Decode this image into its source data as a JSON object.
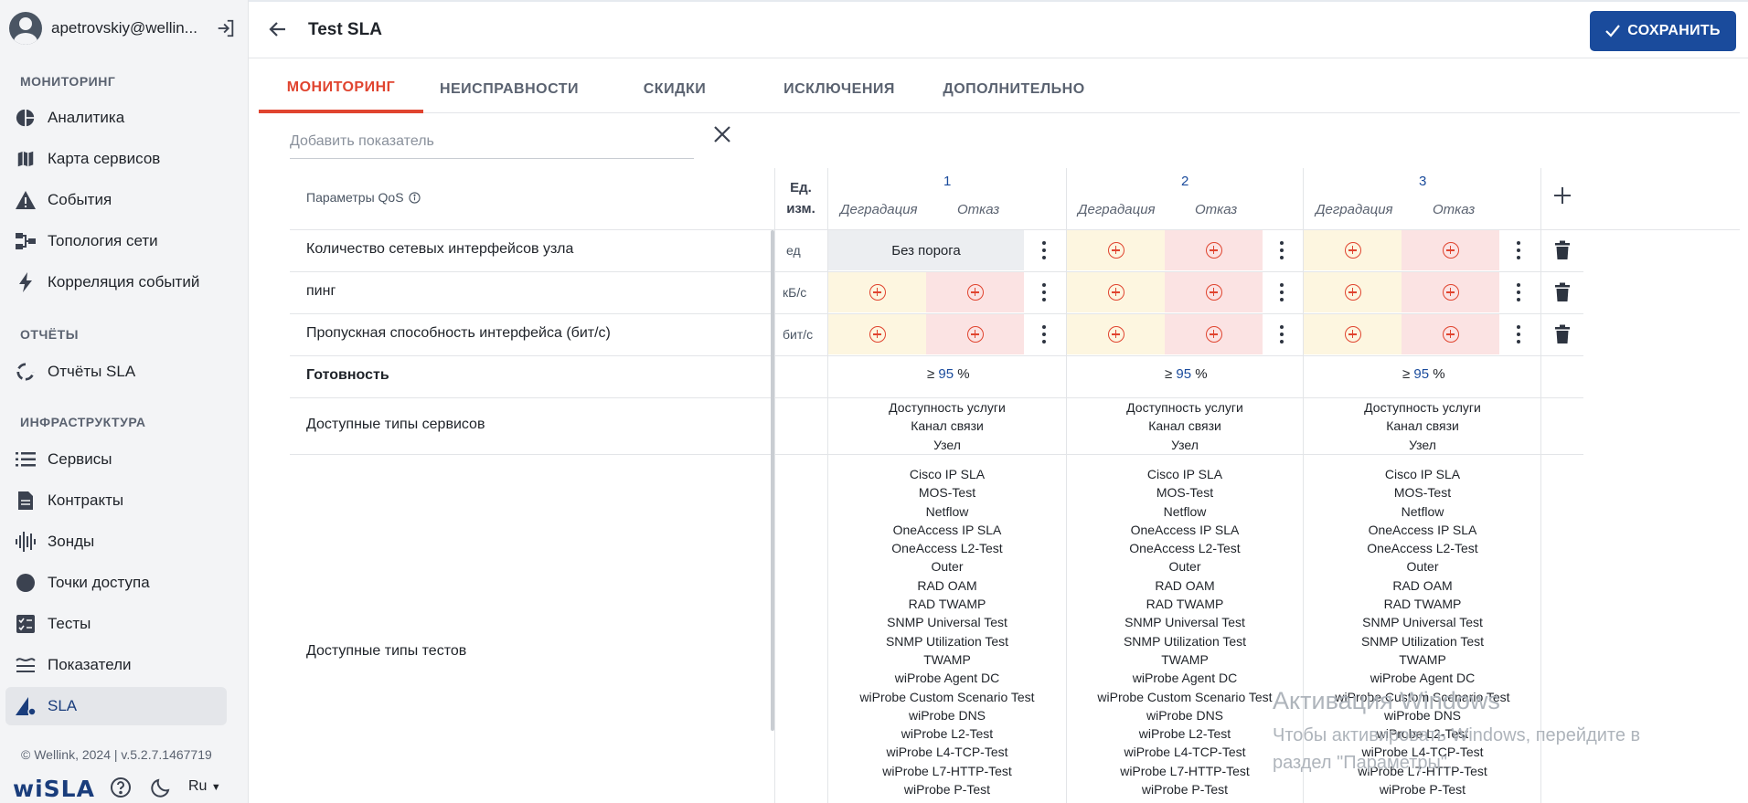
{
  "user": {
    "email": "apetrovskiy@wellin..."
  },
  "sidebar": {
    "sections": [
      {
        "title": "МОНИТОРИНГ"
      },
      {
        "title": "ОТЧЁТЫ"
      },
      {
        "title": "ИНФРАСТРУКТУРА"
      }
    ],
    "items": [
      {
        "label": "Аналитика",
        "icon": "pie-chart-icon"
      },
      {
        "label": "Карта сервисов",
        "icon": "map-icon"
      },
      {
        "label": "События",
        "icon": "warning-icon"
      },
      {
        "label": "Топология сети",
        "icon": "topology-icon"
      },
      {
        "label": "Корреляция событий",
        "icon": "lightning-icon"
      },
      {
        "label": "Отчёты SLA",
        "icon": "report-icon"
      },
      {
        "label": "Сервисы",
        "icon": "list-icon"
      },
      {
        "label": "Контракты",
        "icon": "document-icon"
      },
      {
        "label": "Зонды",
        "icon": "probe-icon"
      },
      {
        "label": "Точки доступа",
        "icon": "circle-icon"
      },
      {
        "label": "Тесты",
        "icon": "checklist-icon"
      },
      {
        "label": "Показатели",
        "icon": "indicators-icon"
      },
      {
        "label": "SLA",
        "icon": "sla-icon"
      }
    ],
    "footer": {
      "copyright": "© Wellink, 2024 | v.5.2.7.1467719",
      "brand": "wiSLA",
      "language": "Ru"
    }
  },
  "header": {
    "title": "Test SLA",
    "save_label": "СОХРАНИТЬ"
  },
  "tabs": [
    {
      "label": "МОНИТОРИНГ",
      "active": true
    },
    {
      "label": "НЕИСПРАВНОСТИ"
    },
    {
      "label": "СКИДКИ"
    },
    {
      "label": "ИСКЛЮЧЕНИЯ"
    },
    {
      "label": "ДОПОЛНИТЕЛЬНО"
    }
  ],
  "add_indicator": {
    "placeholder": "Добавить показатель"
  },
  "table": {
    "qos_header": "Параметры QoS",
    "unit_header_1": "Ед.",
    "unit_header_2": "изм.",
    "columns": [
      {
        "number": "1",
        "degradation": "Деградация",
        "failure": "Отказ"
      },
      {
        "number": "2",
        "degradation": "Деградация",
        "failure": "Отказ"
      },
      {
        "number": "3",
        "degradation": "Деградация",
        "failure": "Отказ"
      }
    ],
    "rows": [
      {
        "name": "Количество сетевых интерфейсов узла",
        "unit": "ед",
        "first_cell": "Без порога"
      },
      {
        "name": "пинг",
        "unit": "кБ/с"
      },
      {
        "name": "Пропускная способность интерфейса (бит/с)",
        "unit": "бит/с"
      }
    ],
    "availability": {
      "label": "Готовность",
      "prefix": "≥",
      "value": "95",
      "suffix": "%"
    },
    "service_types": {
      "label": "Доступные типы сервисов",
      "items": [
        "Доступность услуги",
        "Канал связи",
        "Узел"
      ]
    },
    "test_types": {
      "label": "Доступные типы тестов",
      "items": [
        "Cisco IP SLA",
        "MOS-Test",
        "Netflow",
        "OneAccess IP SLA",
        "OneAccess L2-Test",
        "Outer",
        "RAD OAM",
        "RAD TWAMP",
        "SNMP Universal Test",
        "SNMP Utilization Test",
        "TWAMP",
        "wiProbe Agent DC",
        "wiProbe Custom Scenario Test",
        "wiProbe DNS",
        "wiProbe L2-Test",
        "wiProbe L4-TCP-Test",
        "wiProbe L7-HTTP-Test",
        "wiProbe P-Test"
      ]
    }
  },
  "watermark": {
    "title": "Активация Windows",
    "line1": "Чтобы активировать Windows, перейдите в",
    "line2": "раздел \"Параметры\"."
  },
  "colors": {
    "accent": "#e0442f",
    "primary": "#1a4b9c",
    "degradation_bg": "#fdf6e0",
    "failure_bg": "#fbe3e3"
  }
}
